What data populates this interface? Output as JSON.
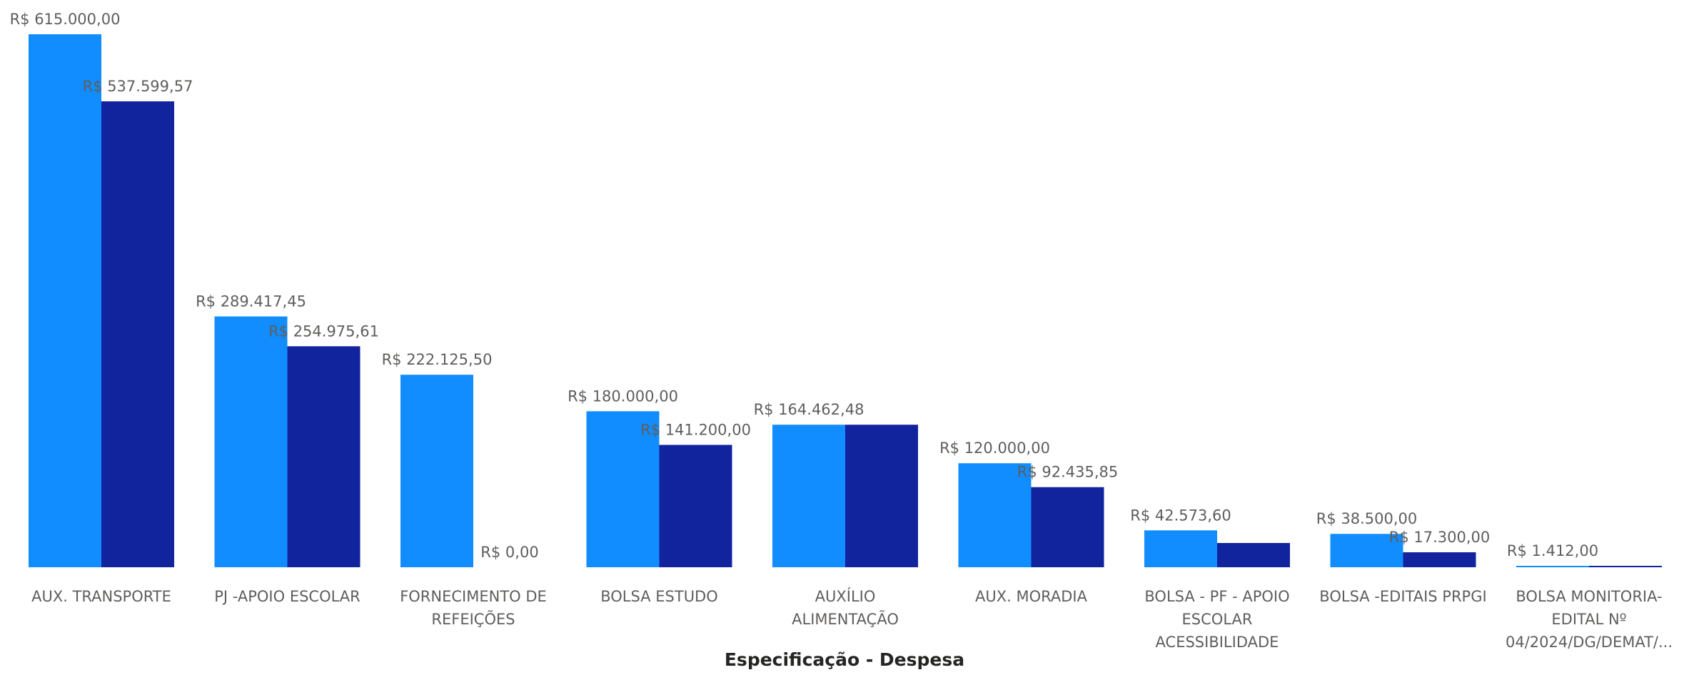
{
  "chart_data": {
    "type": "bar",
    "xlabel": "Especificação - Despesa",
    "ylabel": "",
    "ylim": [
      0,
      615000
    ],
    "grid": false,
    "legend": "none",
    "colors": [
      "#118dff",
      "#12239e"
    ],
    "categories": [
      [
        "AUX. TRANSPORTE"
      ],
      [
        "PJ -APOIO ESCOLAR"
      ],
      [
        "FORNECIMENTO DE",
        "REFEIÇÕES"
      ],
      [
        "BOLSA ESTUDO"
      ],
      [
        "AUXÍLIO",
        "ALIMENTAÇÃO"
      ],
      [
        "AUX. MORADIA"
      ],
      [
        "BOLSA - PF - APOIO",
        "ESCOLAR",
        "ACESSIBILIDADE"
      ],
      [
        "BOLSA -EDITAIS PRPGI"
      ],
      [
        "BOLSA MONITORIA-",
        "EDITAL Nº",
        "04/2024/DG/DEMAT/..."
      ]
    ],
    "series": [
      {
        "values": [
          615000.0,
          289417.45,
          222125.5,
          180000.0,
          164462.48,
          120000.0,
          42573.6,
          38500.0,
          1412.0
        ],
        "labels": [
          "R$ 615.000,00",
          "R$ 289.417,45",
          "R$ 222.125,50",
          "R$ 180.000,00",
          "R$ 164.462,48",
          "R$ 120.000,00",
          "R$ 42.573,60",
          "R$ 38.500,00",
          "R$ 1.412,00"
        ]
      },
      {
        "values": [
          537599.57,
          254975.61,
          0,
          141200.0,
          164462.48,
          92435.85,
          28000,
          17300.0,
          1412.0
        ],
        "labels": [
          "R$ 537.599,57",
          "R$ 254.975,61",
          "R$ 0,00",
          "R$ 141.200,00",
          null,
          "R$ 92.435,85",
          null,
          "R$ 17.300,00",
          null
        ]
      }
    ]
  }
}
